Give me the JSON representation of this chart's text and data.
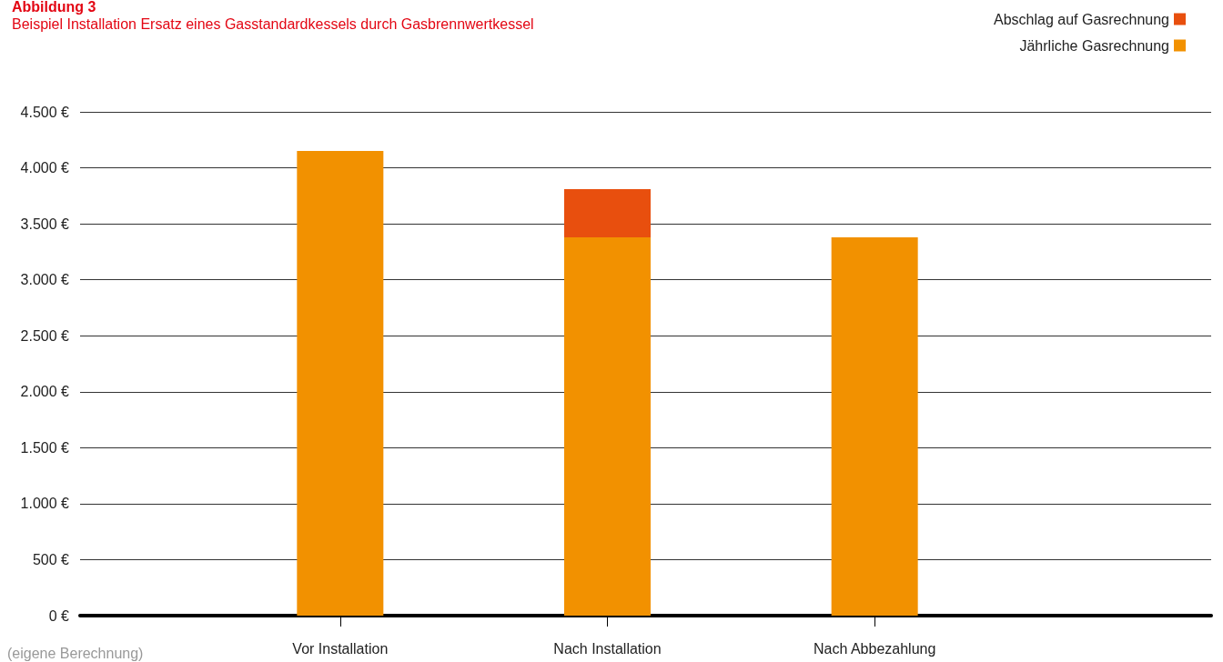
{
  "chart_data": {
    "type": "bar",
    "title": "Abbildung 3",
    "subtitle": "Beispiel Installation Ersatz eines Gasstandardkessels durch Gasbrennwertkessel",
    "categories": [
      "Vor Installation",
      "Nach Installation",
      "Nach Abbezahlung"
    ],
    "series": [
      {
        "name": "Jährliche Gasrechnung",
        "color": "#f29100",
        "values": [
          4150,
          3380,
          3380
        ]
      },
      {
        "name": "Abschlag auf Gasrechnung",
        "color": "#e84f0e",
        "values": [
          null,
          430,
          null
        ]
      }
    ],
    "stacked": true,
    "ylim": [
      0,
      4500
    ],
    "yticks": [
      {
        "value": 0,
        "label": "0 €"
      },
      {
        "value": 500,
        "label": "500 €"
      },
      {
        "value": 1000,
        "label": "1.000 €"
      },
      {
        "value": 1500,
        "label": "1.500 €"
      },
      {
        "value": 2000,
        "label": "2.000 €"
      },
      {
        "value": 2500,
        "label": "2.500 €"
      },
      {
        "value": 3000,
        "label": "3.000 €"
      },
      {
        "value": 3500,
        "label": "3.500 €"
      },
      {
        "value": 4000,
        "label": "4.000 €"
      },
      {
        "value": 4500,
        "label": "4.500 €"
      }
    ],
    "grid": "y",
    "legend": "top right",
    "annotations": [
      "(eigene Berechnung)"
    ]
  }
}
